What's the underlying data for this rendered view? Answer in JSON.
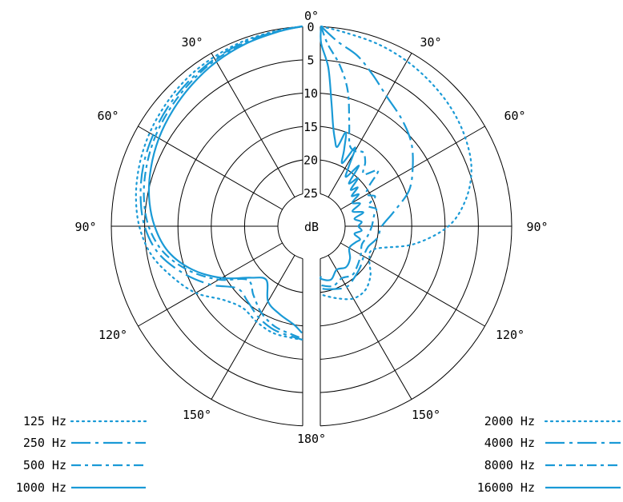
{
  "chart_data": {
    "type": "polar",
    "title": "",
    "unit_label": "dB",
    "radial_ticks": [
      "0",
      "5",
      "10",
      "15",
      "20",
      "25"
    ],
    "radial_range": [
      25,
      0
    ],
    "angle_labels": [
      {
        "label": "0°",
        "angle": 0
      },
      {
        "label": "30°",
        "angle": 30
      },
      {
        "label": "30°",
        "angle": -30
      },
      {
        "label": "60°",
        "angle": 60
      },
      {
        "label": "60°",
        "angle": -60
      },
      {
        "label": "90°",
        "angle": 90
      },
      {
        "label": "90°",
        "angle": -90
      },
      {
        "label": "120°",
        "angle": 120
      },
      {
        "label": "120°",
        "angle": -120
      },
      {
        "label": "150°",
        "angle": 150
      },
      {
        "label": "150°",
        "angle": -150
      },
      {
        "label": "180°",
        "angle": 180
      }
    ],
    "series": [
      {
        "name": "125 Hz",
        "style": "dotted",
        "side": "left",
        "points": [
          [
            0,
            0
          ],
          [
            10,
            0.2
          ],
          [
            20,
            0.4
          ],
          [
            30,
            0.7
          ],
          [
            40,
            1.0
          ],
          [
            50,
            1.5
          ],
          [
            60,
            2.0
          ],
          [
            70,
            2.6
          ],
          [
            80,
            3.3
          ],
          [
            90,
            4.2
          ],
          [
            100,
            5.6
          ],
          [
            110,
            7.8
          ],
          [
            120,
            10.0
          ],
          [
            130,
            12.8
          ],
          [
            140,
            14.0
          ],
          [
            150,
            13.5
          ],
          [
            160,
            13.0
          ],
          [
            170,
            13.0
          ],
          [
            180,
            13.0
          ]
        ]
      },
      {
        "name": "250 Hz",
        "style": "dashdot-long",
        "side": "left",
        "points": [
          [
            0,
            0
          ],
          [
            10,
            0.3
          ],
          [
            20,
            0.6
          ],
          [
            30,
            1.0
          ],
          [
            40,
            1.5
          ],
          [
            50,
            2.0
          ],
          [
            60,
            2.6
          ],
          [
            70,
            3.2
          ],
          [
            80,
            4.0
          ],
          [
            90,
            5.0
          ],
          [
            100,
            6.7
          ],
          [
            110,
            9.5
          ],
          [
            120,
            12.5
          ],
          [
            130,
            15.5
          ],
          [
            140,
            15.2
          ],
          [
            150,
            14.2
          ],
          [
            160,
            13.5
          ],
          [
            170,
            13.2
          ],
          [
            180,
            13.0
          ]
        ]
      },
      {
        "name": "500 Hz",
        "style": "dashdot-short",
        "side": "left",
        "points": [
          [
            0,
            0
          ],
          [
            10,
            0.3
          ],
          [
            20,
            0.7
          ],
          [
            30,
            1.2
          ],
          [
            40,
            1.8
          ],
          [
            50,
            2.4
          ],
          [
            60,
            3.0
          ],
          [
            70,
            3.7
          ],
          [
            80,
            4.5
          ],
          [
            90,
            5.6
          ],
          [
            100,
            7.5
          ],
          [
            110,
            10.5
          ],
          [
            120,
            14.0
          ],
          [
            130,
            17.5
          ],
          [
            140,
            16.5
          ],
          [
            150,
            15.0
          ],
          [
            160,
            14.0
          ],
          [
            170,
            13.5
          ],
          [
            180,
            13.2
          ]
        ]
      },
      {
        "name": "1000 Hz",
        "style": "solid",
        "side": "left",
        "points": [
          [
            0,
            0
          ],
          [
            10,
            0.4
          ],
          [
            20,
            0.9
          ],
          [
            30,
            1.5
          ],
          [
            40,
            2.2
          ],
          [
            50,
            2.9
          ],
          [
            60,
            3.6
          ],
          [
            70,
            4.4
          ],
          [
            80,
            5.3
          ],
          [
            90,
            6.5
          ],
          [
            100,
            8.2
          ],
          [
            110,
            11.0
          ],
          [
            120,
            14.5
          ],
          [
            130,
            18.0
          ],
          [
            140,
            19.5
          ],
          [
            150,
            17.0
          ],
          [
            160,
            16.0
          ],
          [
            170,
            15.0
          ],
          [
            180,
            14.0
          ]
        ]
      },
      {
        "name": "2000 Hz",
        "style": "dotted",
        "side": "right",
        "points": [
          [
            0,
            0
          ],
          [
            10,
            0.5
          ],
          [
            20,
            0.9
          ],
          [
            30,
            1.4
          ],
          [
            40,
            2.0
          ],
          [
            50,
            2.6
          ],
          [
            60,
            3.4
          ],
          [
            70,
            4.5
          ],
          [
            80,
            6.5
          ],
          [
            90,
            9.5
          ],
          [
            100,
            14.5
          ],
          [
            110,
            20.0
          ],
          [
            120,
            20.0
          ],
          [
            130,
            18.5
          ],
          [
            140,
            17.5
          ],
          [
            150,
            17.5
          ],
          [
            160,
            18.5
          ],
          [
            170,
            19.5
          ],
          [
            180,
            20.0
          ]
        ]
      },
      {
        "name": "4000 Hz",
        "style": "dashdot-long",
        "side": "right",
        "points": [
          [
            0,
            0
          ],
          [
            8,
            2.0
          ],
          [
            15,
            3.5
          ],
          [
            22,
            5.5
          ],
          [
            30,
            7.5
          ],
          [
            40,
            9.0
          ],
          [
            50,
            10.5
          ],
          [
            60,
            12.5
          ],
          [
            70,
            14.5
          ],
          [
            80,
            17.5
          ],
          [
            90,
            19.5
          ],
          [
            100,
            20.0
          ],
          [
            110,
            21.0
          ],
          [
            120,
            21.0
          ],
          [
            130,
            20.5
          ],
          [
            140,
            20.0
          ],
          [
            150,
            19.5
          ],
          [
            160,
            20.0
          ],
          [
            170,
            20.5
          ],
          [
            180,
            21.0
          ]
        ]
      },
      {
        "name": "8000 Hz",
        "style": "dashdot-short",
        "side": "right",
        "points": [
          [
            0,
            0
          ],
          [
            5,
            2.5
          ],
          [
            10,
            5.5
          ],
          [
            15,
            9.0
          ],
          [
            20,
            13.5
          ],
          [
            25,
            16.5
          ],
          [
            30,
            17.0
          ],
          [
            35,
            16.5
          ],
          [
            40,
            17.5
          ],
          [
            45,
            19.0
          ],
          [
            50,
            17.0
          ],
          [
            55,
            19.5
          ],
          [
            60,
            20.5
          ],
          [
            65,
            19.5
          ],
          [
            70,
            21.0
          ],
          [
            75,
            20.0
          ],
          [
            80,
            20.5
          ],
          [
            90,
            21.0
          ],
          [
            100,
            21.5
          ],
          [
            110,
            22.0
          ],
          [
            120,
            21.5
          ],
          [
            130,
            21.0
          ],
          [
            140,
            20.5
          ],
          [
            150,
            21.0
          ],
          [
            160,
            20.5
          ],
          [
            170,
            21.0
          ],
          [
            180,
            21.5
          ]
        ]
      },
      {
        "name": "16000 Hz",
        "style": "solid",
        "side": "right",
        "points": [
          [
            0,
            0
          ],
          [
            3,
            2.5
          ],
          [
            6,
            6.0
          ],
          [
            9,
            11.0
          ],
          [
            12,
            14.5
          ],
          [
            15,
            16.5
          ],
          [
            18,
            17.5
          ],
          [
            20,
            15.0
          ],
          [
            23,
            17.5
          ],
          [
            26,
            19.5
          ],
          [
            29,
            16.5
          ],
          [
            32,
            19.5
          ],
          [
            35,
            21.0
          ],
          [
            38,
            18.5
          ],
          [
            41,
            21.5
          ],
          [
            44,
            20.0
          ],
          [
            47,
            22.0
          ],
          [
            50,
            21.0
          ],
          [
            53,
            22.5
          ],
          [
            56,
            21.5
          ],
          [
            60,
            23.0
          ],
          [
            65,
            22.0
          ],
          [
            70,
            23.5
          ],
          [
            75,
            22.0
          ],
          [
            80,
            23.5
          ],
          [
            85,
            22.5
          ],
          [
            90,
            23.0
          ],
          [
            95,
            22.5
          ],
          [
            100,
            23.5
          ],
          [
            105,
            22.5
          ],
          [
            110,
            23.0
          ],
          [
            120,
            23.5
          ],
          [
            130,
            22.5
          ],
          [
            140,
            22.0
          ],
          [
            150,
            22.5
          ],
          [
            160,
            21.5
          ],
          [
            170,
            22.0
          ],
          [
            180,
            22.5
          ]
        ]
      }
    ],
    "colors": {
      "curve": "#1a9ad6",
      "grid": "#000000",
      "background": "#ffffff"
    }
  },
  "legend": {
    "left": [
      "125 Hz",
      "250 Hz",
      "500 Hz",
      "1000 Hz"
    ],
    "right": [
      "2000 Hz",
      "4000 Hz",
      "8000 Hz",
      "16000 Hz"
    ]
  }
}
